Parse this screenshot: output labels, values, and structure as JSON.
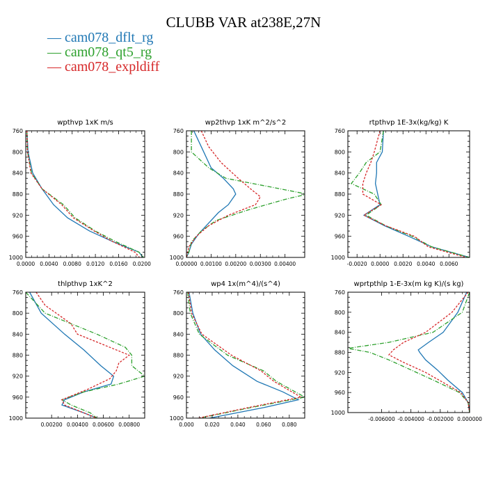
{
  "title": "CLUBB VAR at238E,27N",
  "legend": [
    {
      "label": "cam078_dflt_rg",
      "color": "#1f77b4"
    },
    {
      "label": "cam078_qt5_rg",
      "color": "#2ca02c"
    },
    {
      "label": "cam078_expldiff",
      "color": "#d62728"
    }
  ],
  "chart_data": [
    {
      "type": "line",
      "title": "wpthvp   1xK m/s",
      "xlim": [
        0.0,
        0.0205
      ],
      "ylim": [
        760,
        1000
      ],
      "xticks": [
        0.0,
        0.004,
        0.008,
        0.012,
        0.016,
        0.02
      ],
      "xtick_labels": [
        "0.0000",
        "0.0040",
        "0.0080",
        "0.0120",
        "0.0160",
        "0.0200"
      ],
      "yticks": [
        760,
        800,
        840,
        880,
        920,
        960,
        1000
      ],
      "series": [
        {
          "name": "cam078_dflt_rg",
          "y": [
            760,
            800,
            840,
            870,
            900,
            925,
            950,
            970,
            990,
            1000
          ],
          "x": [
            0.0002,
            0.0004,
            0.0012,
            0.0028,
            0.0048,
            0.0072,
            0.011,
            0.015,
            0.0195,
            0.0202
          ]
        },
        {
          "name": "cam078_qt5_rg",
          "y": [
            760,
            800,
            840,
            870,
            900,
            925,
            950,
            970,
            990,
            1000
          ],
          "x": [
            0.0002,
            0.0003,
            0.001,
            0.0028,
            0.0065,
            0.0085,
            0.012,
            0.0155,
            0.0195,
            0.0203
          ]
        },
        {
          "name": "cam078_expldiff",
          "y": [
            760,
            800,
            840,
            870,
            900,
            925,
            950,
            970,
            990,
            1000
          ],
          "x": [
            0.0002,
            0.0003,
            0.0009,
            0.0028,
            0.0062,
            0.0082,
            0.0118,
            0.015,
            0.0188,
            0.0196
          ]
        }
      ]
    },
    {
      "type": "line",
      "title": "wp2thvp   1xK m^2/s^2",
      "xlim": [
        0.0,
        0.0048
      ],
      "ylim": [
        760,
        1000
      ],
      "xticks": [
        0.0,
        0.001,
        0.002,
        0.003,
        0.004
      ],
      "xtick_labels": [
        "0.00000",
        "0.00100",
        "0.00200",
        "0.00300",
        "0.00400"
      ],
      "yticks": [
        760,
        800,
        840,
        880,
        920,
        960,
        1000
      ],
      "series": [
        {
          "name": "cam078_dflt_rg",
          "y": [
            760,
            780,
            800,
            830,
            850,
            870,
            880,
            900,
            915,
            935,
            955,
            975,
            990,
            1000
          ],
          "x": [
            0.0003,
            0.0005,
            0.0007,
            0.001,
            0.0015,
            0.0019,
            0.002,
            0.0017,
            0.0013,
            0.0009,
            0.0005,
            0.0002,
            0.0001,
            0.0
          ]
        },
        {
          "name": "cam078_qt5_rg",
          "y": [
            760,
            800,
            830,
            850,
            870,
            880,
            890,
            910,
            930,
            950,
            970,
            990,
            1000
          ],
          "x": [
            0.0002,
            0.0002,
            0.0009,
            0.0016,
            0.0038,
            0.0049,
            0.004,
            0.0025,
            0.0012,
            0.0006,
            0.0002,
            0.0001,
            0.0
          ]
        },
        {
          "name": "cam078_expldiff",
          "y": [
            760,
            790,
            820,
            850,
            870,
            885,
            900,
            920,
            940,
            960,
            980,
            1000
          ],
          "x": [
            0.0006,
            0.0009,
            0.0014,
            0.0021,
            0.0026,
            0.003,
            0.0028,
            0.0017,
            0.0009,
            0.0004,
            0.0001,
            0.0
          ]
        }
      ]
    },
    {
      "type": "line",
      "title": "rtpthvp   1E-3x(kg/kg) K",
      "xlim": [
        -0.0028,
        0.0078
      ],
      "ylim": [
        760,
        1000
      ],
      "xticks": [
        -0.002,
        0.0,
        0.002,
        0.004,
        0.006
      ],
      "xtick_labels": [
        "-0.0020",
        "0.0000",
        "0.0020",
        "0.0040",
        "0.0060"
      ],
      "yticks": [
        760,
        800,
        840,
        880,
        920,
        960,
        1000
      ],
      "series": [
        {
          "name": "cam078_dflt_rg",
          "y": [
            760,
            800,
            820,
            840,
            860,
            880,
            900,
            920,
            940,
            960,
            980,
            1000
          ],
          "x": [
            0.0003,
            0.0002,
            -0.0003,
            -0.0003,
            -0.0004,
            -0.0002,
            0.0,
            -0.0014,
            0.0004,
            0.0025,
            0.0045,
            0.0078
          ]
        },
        {
          "name": "cam078_qt5_rg",
          "y": [
            760,
            800,
            820,
            840,
            860,
            880,
            900,
            920,
            940,
            960,
            980,
            1000
          ],
          "x": [
            0.0003,
            0.0,
            -0.0012,
            -0.0018,
            -0.0025,
            -0.0005,
            0.0001,
            -0.0012,
            0.0005,
            0.0028,
            0.0045,
            0.0078
          ]
        },
        {
          "name": "cam078_expldiff",
          "y": [
            760,
            800,
            820,
            840,
            860,
            880,
            900,
            920,
            940,
            960,
            980,
            1000
          ],
          "x": [
            0.0,
            -0.0005,
            -0.0008,
            -0.0012,
            -0.0015,
            -0.0015,
            0.0001,
            -0.0014,
            0.0005,
            0.003,
            0.0042,
            0.0075
          ]
        }
      ]
    },
    {
      "type": "line",
      "title": "thlpthvp   1xK^2",
      "xlim": [
        0.0,
        0.0092
      ],
      "ylim": [
        760,
        1000
      ],
      "xticks": [
        0.002,
        0.004,
        0.006,
        0.008
      ],
      "xtick_labels": [
        "0.00200",
        "0.00400",
        "0.00600",
        "0.00800"
      ],
      "yticks": [
        760,
        800,
        840,
        880,
        920,
        960,
        1000
      ],
      "series": [
        {
          "name": "cam078_dflt_rg",
          "y": [
            760,
            800,
            840,
            870,
            900,
            920,
            935,
            950,
            965,
            975,
            990,
            1000
          ],
          "x": [
            0.0003,
            0.0012,
            0.003,
            0.0045,
            0.0058,
            0.0068,
            0.0066,
            0.0045,
            0.003,
            0.0028,
            0.0045,
            0.0055
          ]
        },
        {
          "name": "cam078_qt5_rg",
          "y": [
            760,
            800,
            840,
            865,
            880,
            900,
            920,
            935,
            950,
            965,
            975,
            990,
            1000
          ],
          "x": [
            0.0,
            0.0015,
            0.0055,
            0.0077,
            0.0082,
            0.0082,
            0.0092,
            0.0072,
            0.0045,
            0.0028,
            0.0035,
            0.005,
            0.0055
          ]
        },
        {
          "name": "cam078_expldiff",
          "y": [
            760,
            785,
            820,
            840,
            880,
            895,
            910,
            925,
            945,
            965,
            975,
            990,
            1000
          ],
          "x": [
            0.0008,
            0.0015,
            0.0035,
            0.004,
            0.008,
            0.0072,
            0.007,
            0.0065,
            0.0048,
            0.0028,
            0.003,
            0.0045,
            0.0055
          ]
        }
      ]
    },
    {
      "type": "line",
      "title": "wp4   1x(m^4)/(s^4)",
      "xlim": [
        0.0,
        0.092
      ],
      "ylim": [
        760,
        1000
      ],
      "xticks": [
        0.0,
        0.02,
        0.04,
        0.06,
        0.08
      ],
      "xtick_labels": [
        "0.000",
        "0.020",
        "0.040",
        "0.060",
        "0.080"
      ],
      "yticks": [
        760,
        800,
        840,
        880,
        920,
        960,
        1000
      ],
      "series": [
        {
          "name": "cam078_dflt_rg",
          "y": [
            760,
            800,
            840,
            870,
            900,
            930,
            950,
            965,
            980,
            1000
          ],
          "x": [
            0.002,
            0.005,
            0.011,
            0.022,
            0.036,
            0.055,
            0.075,
            0.087,
            0.06,
            0.018
          ]
        },
        {
          "name": "cam078_qt5_rg",
          "y": [
            760,
            800,
            840,
            880,
            910,
            930,
            960,
            980,
            1000
          ],
          "x": [
            0.001,
            0.003,
            0.01,
            0.032,
            0.06,
            0.07,
            0.092,
            0.05,
            0.01
          ]
        },
        {
          "name": "cam078_expldiff",
          "y": [
            760,
            800,
            840,
            880,
            910,
            930,
            960,
            980,
            1000
          ],
          "x": [
            0.0015,
            0.004,
            0.012,
            0.035,
            0.058,
            0.068,
            0.089,
            0.048,
            0.009
          ]
        }
      ]
    },
    {
      "type": "line",
      "title": "wprtpthlp   1-E-3x(m kg K)/(s kg)",
      "xlim": [
        -0.0083,
        0.0
      ],
      "ylim": [
        760,
        1000
      ],
      "xticks": [
        -0.006,
        -0.004,
        -0.002,
        0.0
      ],
      "xtick_labels": [
        "-0.006000",
        "-0.004000",
        "-0.002000",
        "0.000000"
      ],
      "yticks": [
        760,
        800,
        840,
        880,
        920,
        960,
        1000
      ],
      "series": [
        {
          "name": "cam078_dflt_rg",
          "y": [
            760,
            800,
            840,
            860,
            875,
            880,
            895,
            915,
            935,
            960,
            980,
            1000
          ],
          "x": [
            -0.0002,
            -0.0008,
            -0.0018,
            -0.0028,
            -0.0035,
            -0.0034,
            -0.003,
            -0.0022,
            -0.0015,
            -0.0005,
            -0.0001,
            0.0
          ]
        },
        {
          "name": "cam078_qt5_rg",
          "y": [
            760,
            800,
            840,
            860,
            872,
            880,
            895,
            915,
            935,
            960,
            980,
            1000
          ],
          "x": [
            0.0,
            -0.0005,
            -0.0025,
            -0.0055,
            -0.0083,
            -0.0068,
            -0.0055,
            -0.004,
            -0.0025,
            -0.0007,
            -0.0001,
            0.0
          ]
        },
        {
          "name": "cam078_expldiff",
          "y": [
            760,
            800,
            840,
            860,
            875,
            885,
            900,
            920,
            940,
            960,
            980,
            1000
          ],
          "x": [
            -0.0001,
            -0.0012,
            -0.003,
            -0.0045,
            -0.0052,
            -0.0055,
            -0.0045,
            -0.003,
            -0.0018,
            -0.0006,
            -0.0001,
            0.0
          ]
        }
      ]
    }
  ]
}
